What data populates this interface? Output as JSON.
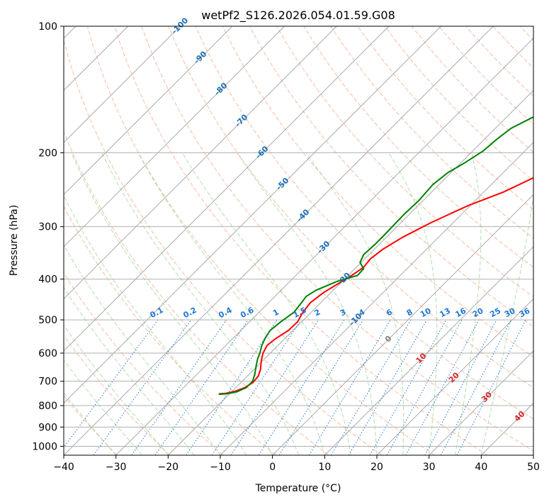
{
  "chart_data": {
    "type": "line",
    "title": "wetPf2_S126.2026.054.01.59.G08",
    "xlabel": "Temperature (°C)",
    "ylabel": "Pressure (hPa)",
    "xlim": [
      -40,
      50
    ],
    "ylim": [
      1050,
      100
    ],
    "x_ticks": [
      -40,
      -30,
      -20,
      -10,
      0,
      10,
      20,
      30,
      40,
      50
    ],
    "x_tick_labels": [
      "−40",
      "−30",
      "−20",
      "−10",
      "0",
      "10",
      "20",
      "30",
      "40",
      "50"
    ],
    "y_ticks": [
      1000,
      900,
      800,
      700,
      600,
      500,
      400,
      300,
      200,
      100
    ],
    "y_tick_labels": [
      "1000",
      "900",
      "800",
      "700",
      "600",
      "500",
      "400",
      "300",
      "200",
      "100"
    ],
    "grid": true,
    "series": [
      {
        "name": "Temperature",
        "color": "#ff0000",
        "points": [
          [
            -22,
            750
          ],
          [
            -20.8,
            748
          ],
          [
            -19.5,
            740
          ],
          [
            -18.3,
            725
          ],
          [
            -17.7,
            705
          ],
          [
            -17.9,
            680
          ],
          [
            -18.8,
            655
          ],
          [
            -20.3,
            625
          ],
          [
            -21.4,
            600
          ],
          [
            -22.1,
            575
          ],
          [
            -21.8,
            555
          ],
          [
            -20.9,
            530
          ],
          [
            -20.8,
            505
          ],
          [
            -21.6,
            480
          ],
          [
            -22.0,
            455
          ],
          [
            -21.4,
            430
          ],
          [
            -20.3,
            410
          ],
          [
            -19.3,
            392
          ],
          [
            -18.6,
            375
          ],
          [
            -18.9,
            358
          ],
          [
            -18.4,
            340
          ],
          [
            -16.9,
            318
          ],
          [
            -14.2,
            293
          ],
          [
            -10.5,
            268
          ],
          [
            -6.2,
            248
          ],
          [
            -3.3,
            230
          ],
          [
            -0.7,
            213
          ],
          [
            2.3,
            195
          ],
          [
            5.1,
            180
          ],
          [
            7.6,
            168
          ],
          [
            9.2,
            158
          ],
          [
            10.6,
            148
          ],
          [
            11.7,
            140
          ],
          [
            13.8,
            130
          ],
          [
            16.0,
            121
          ],
          [
            19.0,
            112
          ],
          [
            22.0,
            105
          ],
          [
            24.5,
            100
          ]
        ]
      },
      {
        "name": "Dewpoint",
        "color": "#008000",
        "points": [
          [
            -22,
            752
          ],
          [
            -20.5,
            750
          ],
          [
            -19.0,
            742
          ],
          [
            -18.0,
            725
          ],
          [
            -18.0,
            700
          ],
          [
            -19.0,
            672
          ],
          [
            -20.3,
            643
          ],
          [
            -21.3,
            620
          ],
          [
            -22.0,
            600
          ],
          [
            -23.0,
            578
          ],
          [
            -23.8,
            555
          ],
          [
            -24.4,
            530
          ],
          [
            -24.0,
            505
          ],
          [
            -23.3,
            480
          ],
          [
            -23.7,
            455
          ],
          [
            -24.0,
            440
          ],
          [
            -23.3,
            425
          ],
          [
            -21.0,
            405
          ],
          [
            -18.2,
            392
          ],
          [
            -18.3,
            378
          ],
          [
            -20.2,
            365
          ],
          [
            -21.0,
            350
          ],
          [
            -20.8,
            330
          ],
          [
            -20.8,
            316
          ],
          [
            -20.9,
            298
          ],
          [
            -21.0,
            280
          ],
          [
            -20.8,
            260
          ],
          [
            -21.2,
            238
          ],
          [
            -20.6,
            223
          ],
          [
            -19.3,
            212
          ],
          [
            -18.0,
            198
          ],
          [
            -17.6,
            185
          ],
          [
            -17.0,
            175
          ],
          [
            -15.0,
            165
          ],
          [
            -12.3,
            155
          ],
          [
            -8.5,
            143
          ],
          [
            -5.0,
            133
          ],
          [
            -1.2,
            124
          ],
          [
            1.2,
            117
          ],
          [
            2.6,
            112
          ],
          [
            4.8,
            106
          ],
          [
            6.9,
            100
          ]
        ]
      }
    ],
    "isotherm_labels": [
      "-100",
      "-90",
      "-80",
      "-70",
      "-60",
      "-50",
      "-40",
      "-30",
      "-20",
      "-10",
      "0",
      "10",
      "20",
      "30",
      "40"
    ],
    "isotherm_label_values": [
      -100,
      -90,
      -80,
      -70,
      -60,
      -50,
      -40,
      -30,
      -20,
      -10,
      0,
      10,
      20,
      30,
      40
    ],
    "mixing_ratio_labels": [
      "0.1",
      "0.2",
      "0.4",
      "0.6",
      "1",
      "1.5",
      "2",
      "3",
      "4",
      "6",
      "8",
      "10",
      "13",
      "16",
      "20",
      "25",
      "30",
      "36"
    ],
    "mixing_ratio_values": [
      0.1,
      0.2,
      0.4,
      0.6,
      1,
      1.5,
      2,
      3,
      4,
      6,
      8,
      10,
      13,
      16,
      20,
      25,
      30,
      36
    ],
    "skew_factor": 35,
    "colors": {
      "temperature": "#ff0000",
      "dewpoint": "#008000",
      "isotherm": "#a0a0a0",
      "dry_adiabat": "#f4a582",
      "moist_adiabat": "#a6d8a0",
      "mixing_ratio": "#1f77d4",
      "isotherm_label_cold": "#1f6fb4",
      "isotherm_label_warm": "#d62728",
      "isotherm_label_zero": "#808080",
      "grid": "#b0b0b0"
    }
  }
}
